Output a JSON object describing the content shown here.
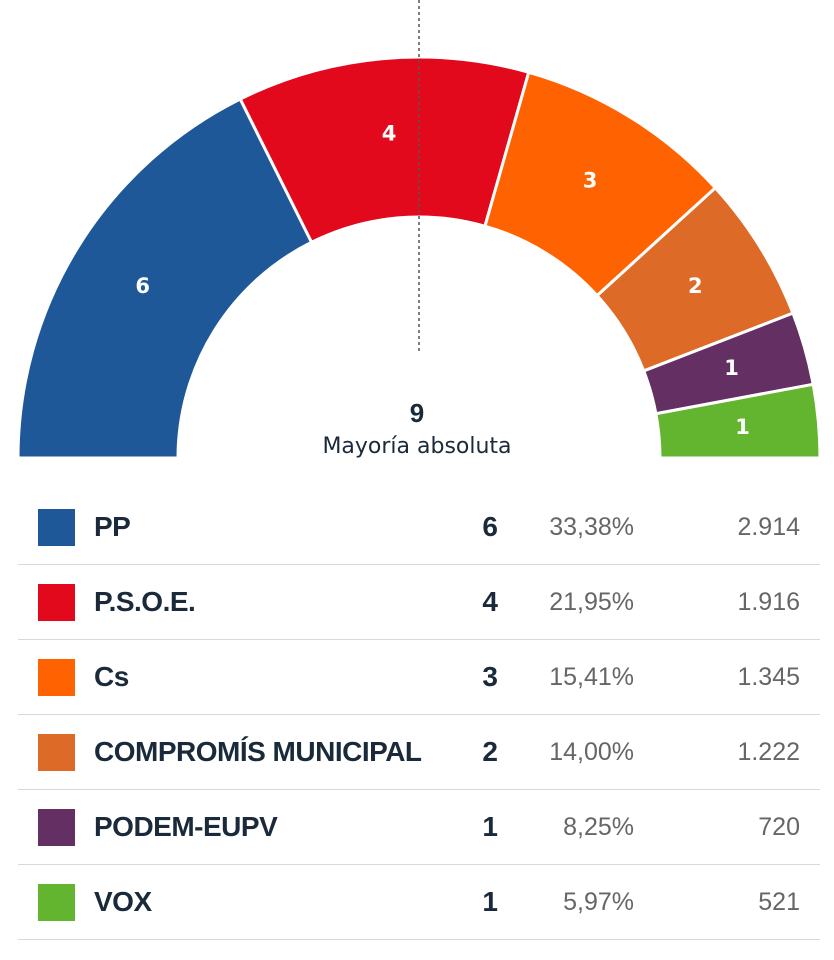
{
  "chart_data": {
    "type": "pie",
    "subtype": "parliament-semicircle",
    "categories": [
      "PP",
      "P.S.O.E.",
      "Cs",
      "COMPROMÍS MUNICIPAL",
      "PODEM-EUPV",
      "VOX"
    ],
    "seats": [
      6,
      4,
      3,
      2,
      1,
      1
    ],
    "percentages": [
      "33,38%",
      "21,95%",
      "15,41%",
      "14,00%",
      "8,25%",
      "5,97%"
    ],
    "votes": [
      "2.914",
      "1.916",
      "1.345",
      "1.222",
      "720",
      "521"
    ],
    "colors": [
      "#1e5898",
      "#e2091d",
      "#ff6200",
      "#de6a27",
      "#642f63",
      "#63b42e"
    ],
    "majority": {
      "value": "9",
      "label": "Mayoría absoluta"
    }
  }
}
